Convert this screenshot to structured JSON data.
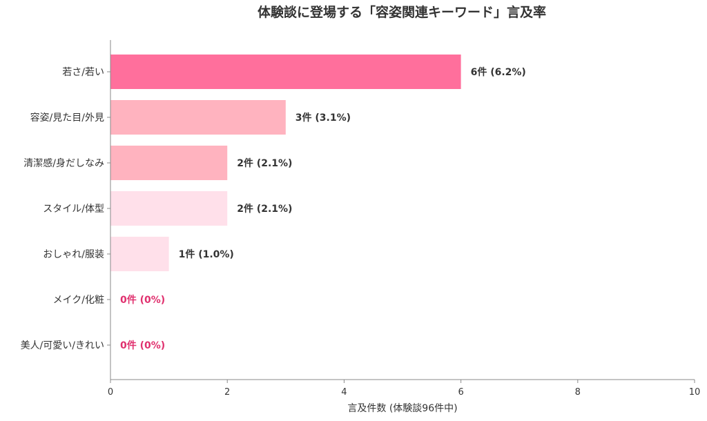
{
  "chart_data": {
    "type": "bar",
    "orientation": "horizontal",
    "title": "体験談に登場する「容姿関連キーワード」言及率",
    "xlabel": "言及件数 (体験談96件中)",
    "ylabel": "",
    "xlim": [
      0,
      10
    ],
    "xticks": [
      0,
      2,
      4,
      6,
      8,
      10
    ],
    "grid": false,
    "categories": [
      "若さ/若い",
      "容姿/見た目/外見",
      "清潔感/身だしなみ",
      "スタイル/体型",
      "おしゃれ/服装",
      "メイク/化粧",
      "美人/可愛い/きれい"
    ],
    "values": [
      6,
      3,
      2,
      2,
      1,
      0,
      0
    ],
    "data_labels": [
      "6件 (6.2%)",
      "3件 (3.1%)",
      "2件 (2.1%)",
      "2件 (2.1%)",
      "1件 (1.0%)",
      "0件 (0%)",
      "0件 (0%)"
    ],
    "colors": [
      "#ff6f9c",
      "#ffb3bf",
      "#ffb3bf",
      "#ffe0ea",
      "#ffe0ea",
      "#ffe0ea",
      "#ffe0ea"
    ],
    "zero_label_color": "#e0306e"
  }
}
